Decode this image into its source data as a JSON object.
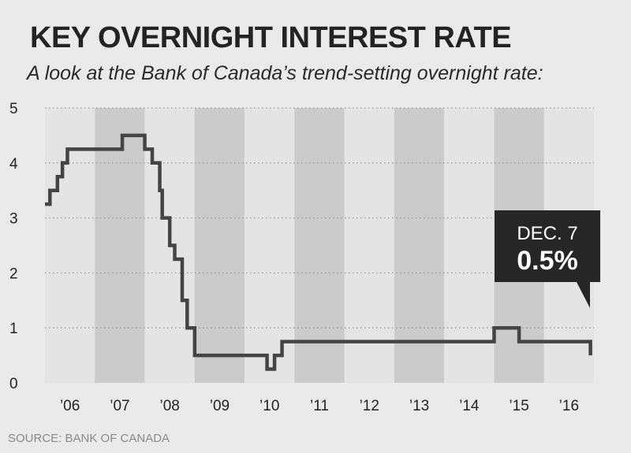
{
  "header": {
    "title": "KEY OVERNIGHT INTEREST RATE",
    "subtitle": "A look at the Bank of Canada’s trend-setting overnight rate:"
  },
  "source": "SOURCE: BANK OF CANADA",
  "callout": {
    "date": "DEC. 7",
    "value": "0.5%"
  },
  "colors": {
    "line": "#444444",
    "band_dark": "#cbcbcb",
    "band_light": "#e4e4e4",
    "callout_bg": "#262626"
  },
  "chart_data": {
    "type": "line",
    "title": "KEY OVERNIGHT INTEREST RATE",
    "subtitle": "A look at the Bank of Canada’s trend-setting overnight rate:",
    "xlabel": "",
    "ylabel": "",
    "x_ticks": [
      "’06",
      "’07",
      "’08",
      "’09",
      "’10",
      "’11",
      "’12",
      "’13",
      "’14",
      "’15",
      "’16"
    ],
    "xlim": [
      2006,
      2017
    ],
    "ylim": [
      0,
      5
    ],
    "y_ticks": [
      "0",
      "1",
      "2",
      "3",
      "4",
      "5"
    ],
    "grid": true,
    "step": true,
    "series": [
      {
        "name": "",
        "x": [
          2006.0,
          2006.1,
          2006.25,
          2006.35,
          2006.45,
          2007.55,
          2008.0,
          2008.15,
          2008.3,
          2008.35,
          2008.5,
          2008.6,
          2008.75,
          2008.85,
          2009.0,
          2010.45,
          2010.6,
          2010.75,
          2015.0,
          2015.5,
          2016.93
        ],
        "y": [
          3.25,
          3.5,
          3.75,
          4.0,
          4.25,
          4.5,
          4.25,
          4.0,
          3.5,
          3.0,
          2.5,
          2.25,
          1.5,
          1.0,
          0.5,
          0.25,
          0.5,
          0.75,
          1.0,
          0.75,
          0.5
        ]
      }
    ],
    "annotation": {
      "date": "DEC. 7",
      "value": "0.5%"
    }
  }
}
